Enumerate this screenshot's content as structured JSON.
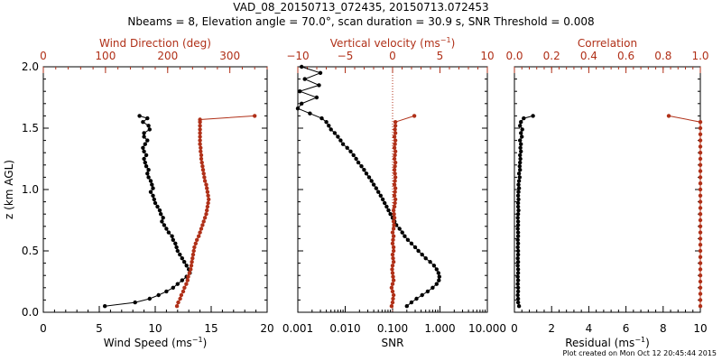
{
  "title": "VAD_08_20150713_072435, 20150713.072453",
  "subtitle": "Nbeams = 8, Elevation angle = 70.0°, scan duration = 30.9 s, SNR Threshold = 0.008",
  "credit": "Plot created on Mon Oct 12 20:45:44 2015",
  "colors": {
    "black": "#000000",
    "red": "#b03018"
  },
  "chart_data": [
    {
      "type": "line",
      "panel": "wind",
      "ylabel": "z (km AGL)",
      "ylim": [
        0,
        2
      ],
      "yticks": [
        "0.0",
        "0.5",
        "1.0",
        "1.5",
        "2.0"
      ],
      "bottom_axis": {
        "label_main": "Wind Speed (ms",
        "label_sup": "−1",
        "label_end": ")",
        "range": [
          0,
          20
        ],
        "ticks": [
          "0",
          "5",
          "10",
          "15",
          "20"
        ]
      },
      "top_axis": {
        "label": "Wind Direction (deg)",
        "range": [
          0,
          360
        ],
        "ticks": [
          "0",
          "100",
          "200",
          "300"
        ],
        "tick_values": [
          0,
          100,
          200,
          300
        ]
      },
      "series": [
        {
          "color": "black",
          "axis": "bottom",
          "z": [
            0.05,
            0.08,
            0.11,
            0.14,
            0.17,
            0.2,
            0.23,
            0.26,
            0.29,
            0.32,
            0.35,
            0.38,
            0.41,
            0.44,
            0.47,
            0.5,
            0.53,
            0.56,
            0.59,
            0.62,
            0.65,
            0.68,
            0.71,
            0.74,
            0.77,
            0.8,
            0.83,
            0.86,
            0.89,
            0.92,
            0.95,
            0.98,
            1.01,
            1.04,
            1.07,
            1.1,
            1.13,
            1.16,
            1.19,
            1.22,
            1.25,
            1.28,
            1.31,
            1.34,
            1.37,
            1.4,
            1.43,
            1.46,
            1.49,
            1.52,
            1.55,
            1.58,
            1.6
          ],
          "values": [
            5.5,
            8.2,
            9.5,
            10.3,
            11.0,
            11.6,
            12.0,
            12.4,
            12.8,
            13.1,
            13.0,
            12.8,
            12.6,
            12.4,
            12.2,
            12.0,
            11.9,
            11.8,
            11.6,
            11.5,
            11.2,
            11.0,
            10.8,
            10.6,
            10.7,
            10.5,
            10.4,
            10.2,
            10.0,
            9.9,
            9.8,
            9.6,
            9.8,
            9.7,
            9.6,
            9.4,
            9.3,
            9.4,
            9.2,
            9.1,
            9.0,
            9.2,
            9.0,
            8.9,
            9.1,
            9.3,
            9.0,
            9.0,
            9.5,
            9.4,
            8.9,
            9.3,
            8.6
          ]
        },
        {
          "color": "red",
          "axis": "top",
          "z": [
            0.05,
            0.08,
            0.11,
            0.14,
            0.17,
            0.2,
            0.23,
            0.26,
            0.29,
            0.32,
            0.35,
            0.38,
            0.41,
            0.44,
            0.47,
            0.5,
            0.53,
            0.56,
            0.59,
            0.62,
            0.65,
            0.68,
            0.71,
            0.74,
            0.77,
            0.8,
            0.83,
            0.86,
            0.89,
            0.92,
            0.95,
            0.98,
            1.01,
            1.04,
            1.07,
            1.1,
            1.13,
            1.16,
            1.19,
            1.22,
            1.25,
            1.28,
            1.31,
            1.34,
            1.37,
            1.4,
            1.43,
            1.46,
            1.49,
            1.52,
            1.55,
            1.57,
            1.6
          ],
          "values": [
            215,
            217,
            220,
            222,
            225,
            227,
            230,
            232,
            233,
            235,
            237,
            238,
            239,
            240,
            241,
            242,
            243,
            245,
            247,
            250,
            252,
            254,
            256,
            258,
            260,
            262,
            263,
            264,
            265,
            266,
            265,
            264,
            263,
            262,
            260,
            259,
            258,
            257,
            256,
            255,
            254,
            254,
            253,
            253,
            252,
            252,
            252,
            252,
            252,
            252,
            252,
            252,
            340
          ]
        }
      ]
    },
    {
      "type": "line",
      "panel": "vertical",
      "ylim": [
        0,
        2
      ],
      "bottom_axis": {
        "label": "SNR",
        "scale": "log",
        "range": [
          0.001,
          10
        ],
        "ticks": [
          "0.001",
          "0.010",
          "0.100",
          "1.000",
          "10.000"
        ],
        "tick_values": [
          0.001,
          0.01,
          0.1,
          1,
          10
        ]
      },
      "top_axis": {
        "label_main": "Vertical velocity (ms",
        "label_sup": "−1",
        "label_end": ")",
        "range": [
          -10,
          10
        ],
        "ticks": [
          "−10",
          "−5",
          "0",
          "5",
          "10"
        ],
        "tick_values": [
          -10,
          -5,
          0,
          5,
          10
        ]
      },
      "series": [
        {
          "color": "black",
          "axis": "bottom",
          "z": [
            0.05,
            0.08,
            0.11,
            0.14,
            0.17,
            0.2,
            0.23,
            0.26,
            0.29,
            0.32,
            0.35,
            0.38,
            0.41,
            0.44,
            0.47,
            0.5,
            0.53,
            0.56,
            0.59,
            0.62,
            0.65,
            0.68,
            0.71,
            0.74,
            0.77,
            0.8,
            0.83,
            0.86,
            0.89,
            0.92,
            0.95,
            0.98,
            1.01,
            1.04,
            1.07,
            1.1,
            1.13,
            1.16,
            1.19,
            1.22,
            1.25,
            1.28,
            1.31,
            1.34,
            1.37,
            1.4,
            1.43,
            1.46,
            1.49,
            1.52,
            1.55,
            1.58,
            1.62,
            1.66,
            1.7,
            1.75,
            1.8,
            1.85,
            1.9,
            1.95,
            2.0
          ],
          "values": [
            0.2,
            0.25,
            0.32,
            0.42,
            0.55,
            0.7,
            0.85,
            0.95,
            0.97,
            0.93,
            0.85,
            0.75,
            0.62,
            0.5,
            0.42,
            0.35,
            0.3,
            0.25,
            0.21,
            0.18,
            0.16,
            0.14,
            0.12,
            0.11,
            0.1,
            0.09,
            0.082,
            0.075,
            0.068,
            0.062,
            0.056,
            0.05,
            0.045,
            0.04,
            0.036,
            0.032,
            0.028,
            0.025,
            0.022,
            0.019,
            0.017,
            0.015,
            0.013,
            0.011,
            0.009,
            0.008,
            0.007,
            0.006,
            0.005,
            0.0045,
            0.004,
            0.0032,
            0.0018,
            0.001,
            0.0012,
            0.0025,
            0.0011,
            0.0028,
            0.0014,
            0.003,
            0.0012
          ]
        },
        {
          "color": "red",
          "axis": "top",
          "z": [
            0.05,
            0.08,
            0.11,
            0.14,
            0.17,
            0.2,
            0.23,
            0.26,
            0.29,
            0.32,
            0.35,
            0.38,
            0.41,
            0.44,
            0.47,
            0.5,
            0.53,
            0.56,
            0.59,
            0.62,
            0.65,
            0.68,
            0.71,
            0.74,
            0.77,
            0.8,
            0.83,
            0.86,
            0.89,
            0.92,
            0.95,
            0.98,
            1.01,
            1.04,
            1.07,
            1.1,
            1.13,
            1.16,
            1.19,
            1.22,
            1.25,
            1.28,
            1.31,
            1.34,
            1.37,
            1.4,
            1.43,
            1.46,
            1.49,
            1.52,
            1.55,
            1.6
          ],
          "values": [
            -0.1,
            0.0,
            0.05,
            0.1,
            0.0,
            -0.1,
            0.0,
            0.1,
            0.05,
            0.0,
            -0.05,
            0.0,
            0.1,
            0.05,
            0.0,
            0.1,
            0.1,
            0.0,
            0.05,
            0.1,
            0.0,
            0.1,
            0.15,
            0.1,
            0.2,
            0.15,
            0.1,
            0.2,
            0.25,
            0.3,
            0.2,
            0.25,
            0.3,
            0.2,
            0.25,
            0.3,
            0.25,
            0.2,
            0.25,
            0.3,
            0.2,
            0.25,
            0.3,
            0.2,
            0.25,
            0.3,
            0.2,
            0.3,
            0.25,
            0.3,
            0.3,
            2.3
          ]
        }
      ],
      "reference_line": {
        "axis": "top",
        "value": 0,
        "color": "red",
        "style": "dotted"
      }
    },
    {
      "type": "line",
      "panel": "correlation",
      "ylim": [
        0,
        2
      ],
      "bottom_axis": {
        "label_main": "Residual (ms",
        "label_sup": "−1",
        "label_end": ")",
        "range": [
          0,
          10
        ],
        "ticks": [
          "0",
          "2",
          "4",
          "6",
          "8",
          "10"
        ]
      },
      "top_axis": {
        "label": "Correlation",
        "range": [
          0,
          1
        ],
        "ticks": [
          "0.0",
          "0.2",
          "0.4",
          "0.6",
          "0.8",
          "1.0"
        ],
        "tick_values": [
          0,
          0.2,
          0.4,
          0.6,
          0.8,
          1.0
        ]
      },
      "series": [
        {
          "color": "black",
          "axis": "bottom",
          "z": [
            0.05,
            0.08,
            0.11,
            0.14,
            0.17,
            0.2,
            0.23,
            0.26,
            0.29,
            0.32,
            0.35,
            0.38,
            0.41,
            0.44,
            0.47,
            0.5,
            0.53,
            0.56,
            0.59,
            0.62,
            0.65,
            0.68,
            0.71,
            0.74,
            0.77,
            0.8,
            0.83,
            0.86,
            0.89,
            0.92,
            0.95,
            0.98,
            1.01,
            1.04,
            1.07,
            1.1,
            1.13,
            1.16,
            1.19,
            1.22,
            1.25,
            1.28,
            1.31,
            1.34,
            1.37,
            1.4,
            1.43,
            1.46,
            1.49,
            1.52,
            1.55,
            1.58,
            1.6
          ],
          "values": [
            0.25,
            0.2,
            0.2,
            0.18,
            0.2,
            0.2,
            0.18,
            0.2,
            0.18,
            0.2,
            0.2,
            0.18,
            0.2,
            0.18,
            0.2,
            0.2,
            0.18,
            0.2,
            0.18,
            0.2,
            0.2,
            0.18,
            0.2,
            0.2,
            0.18,
            0.2,
            0.22,
            0.2,
            0.2,
            0.22,
            0.2,
            0.22,
            0.25,
            0.22,
            0.25,
            0.28,
            0.25,
            0.3,
            0.28,
            0.3,
            0.32,
            0.3,
            0.35,
            0.32,
            0.35,
            0.3,
            0.4,
            0.35,
            0.42,
            0.3,
            0.35,
            0.5,
            1.0
          ]
        },
        {
          "color": "red",
          "axis": "top",
          "z": [
            0.05,
            0.1,
            0.15,
            0.2,
            0.25,
            0.3,
            0.35,
            0.4,
            0.45,
            0.5,
            0.55,
            0.6,
            0.65,
            0.7,
            0.75,
            0.8,
            0.85,
            0.9,
            0.95,
            1.0,
            1.05,
            1.1,
            1.15,
            1.2,
            1.25,
            1.3,
            1.35,
            1.4,
            1.45,
            1.5,
            1.55,
            1.6
          ],
          "values": [
            1.0,
            1.0,
            1.0,
            1.0,
            1.0,
            1.0,
            1.0,
            1.0,
            1.0,
            1.0,
            1.0,
            1.0,
            1.0,
            1.0,
            1.0,
            1.0,
            1.0,
            1.0,
            1.0,
            1.0,
            1.0,
            1.0,
            1.0,
            1.0,
            1.0,
            1.0,
            1.0,
            1.0,
            1.0,
            1.0,
            1.0,
            0.83
          ]
        }
      ]
    }
  ]
}
